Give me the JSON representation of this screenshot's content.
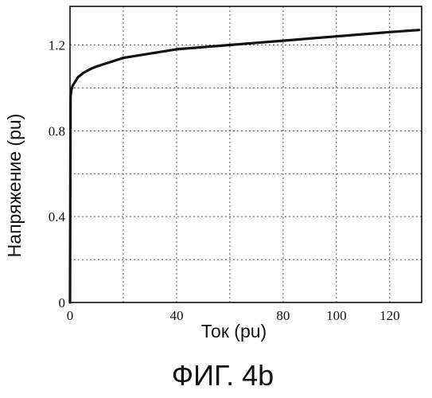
{
  "chart_data": {
    "type": "line",
    "xlabel": "Ток (pu)",
    "ylabel": "Напряжение (pu)",
    "xlim": [
      0,
      132
    ],
    "ylim": [
      0,
      1.38
    ],
    "xticks": [
      0,
      40,
      80,
      100,
      120
    ],
    "yticks": [
      0,
      0.4,
      0.8,
      1.2
    ],
    "xtick_labels": [
      "0",
      "40",
      "80",
      "100",
      "120"
    ],
    "ytick_labels": [
      "0",
      "0.4",
      "0.8",
      "1.2"
    ],
    "x_gridlines": [
      0,
      20,
      40,
      60,
      80,
      100,
      120
    ],
    "y_gridlines": [
      0.2,
      0.4,
      0.6,
      0.8,
      1.0,
      1.2
    ],
    "grid": true,
    "series": [
      {
        "x": [
          0,
          0.2,
          0.5,
          1,
          2,
          3,
          5,
          8,
          10,
          15,
          20,
          30,
          40,
          50,
          60,
          70,
          80,
          90,
          100,
          110,
          120,
          131
        ],
        "y": [
          0,
          0.96,
          0.99,
          1.01,
          1.03,
          1.05,
          1.07,
          1.09,
          1.1,
          1.12,
          1.14,
          1.16,
          1.18,
          1.19,
          1.2,
          1.21,
          1.22,
          1.23,
          1.24,
          1.25,
          1.26,
          1.27
        ]
      }
    ]
  },
  "caption": "ФИГ. 4b"
}
